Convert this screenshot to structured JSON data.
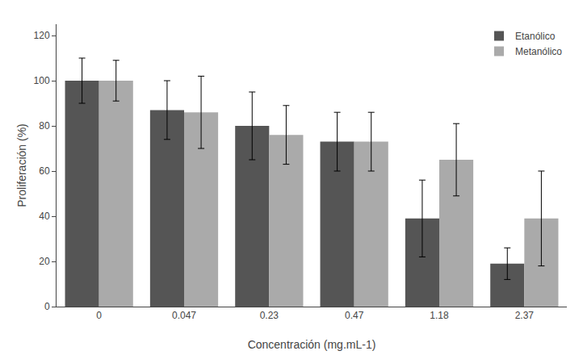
{
  "chart_data": {
    "type": "bar",
    "xlabel": "Concentración (mg.mL-1)",
    "ylabel": "Proliferación (%)",
    "categories": [
      "0",
      "0.047",
      "0.23",
      "0.47",
      "1.18",
      "2.37"
    ],
    "series": [
      {
        "name": "Etanólico",
        "color": "#555555",
        "values": [
          100,
          87,
          80,
          73,
          39,
          19
        ],
        "errors": [
          10,
          13,
          15,
          13,
          17,
          7
        ]
      },
      {
        "name": "Metanólico",
        "color": "#aaaaaa",
        "values": [
          100,
          86,
          76,
          73,
          65,
          39
        ],
        "errors": [
          9,
          16,
          13,
          13,
          16,
          21
        ]
      }
    ],
    "ylim": [
      0,
      125
    ],
    "yticks": [
      0,
      20,
      40,
      60,
      80,
      100,
      120
    ],
    "grid": false,
    "legend": "upper right"
  }
}
